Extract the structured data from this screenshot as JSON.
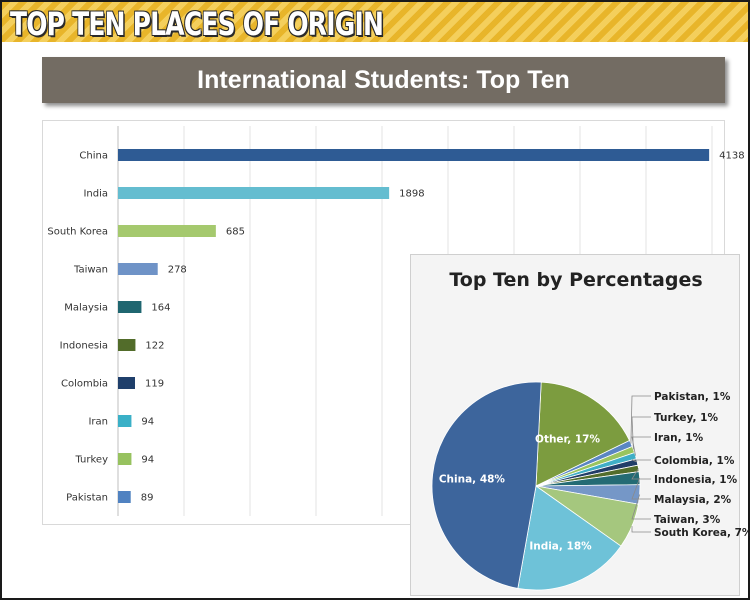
{
  "banner": {
    "title": "TOP TEN PLACES OF ORIGIN"
  },
  "header": {
    "title": "International Students: Top Ten"
  },
  "chart_data": [
    {
      "type": "bar",
      "orientation": "horizontal",
      "categories": [
        "China",
        "India",
        "South Korea",
        "Taiwan",
        "Malaysia",
        "Indonesia",
        "Colombia",
        "Iran",
        "Turkey",
        "Pakistan"
      ],
      "values": [
        4138,
        1898,
        685,
        278,
        164,
        122,
        119,
        94,
        94,
        89
      ],
      "data_labels": [
        "4138",
        "1898",
        "685",
        "278",
        "164",
        "122",
        "119",
        "94",
        "94",
        "89"
      ],
      "colors": [
        "#2e5b94",
        "#64bdd0",
        "#a5c96e",
        "#6f93c7",
        "#1f6670",
        "#526c2a",
        "#1f3f6b",
        "#3ab0c7",
        "#97c25f",
        "#5082c1"
      ],
      "xlim": [
        0,
        4200
      ],
      "grid": true,
      "xlabel": "",
      "ylabel": "",
      "title": ""
    },
    {
      "type": "pie",
      "title": "Top Ten by Percentages",
      "slices": [
        {
          "label": "China, 48%",
          "value": 48,
          "color": "#3d659c"
        },
        {
          "label": "India, 18%",
          "value": 18,
          "color": "#6ec2d8"
        },
        {
          "label": "South Korea, 7%",
          "value": 7,
          "color": "#a5c77e"
        },
        {
          "label": "Taiwan, 3%",
          "value": 3,
          "color": "#7597c7"
        },
        {
          "label": "Malaysia, 2%",
          "value": 2,
          "color": "#246b74"
        },
        {
          "label": "Indonesia, 1%",
          "value": 1,
          "color": "#536d2b"
        },
        {
          "label": "Colombia, 1%",
          "value": 1,
          "color": "#213d68"
        },
        {
          "label": "Iran, 1%",
          "value": 1,
          "color": "#3faec6"
        },
        {
          "label": "Turkey, 1%",
          "value": 1,
          "color": "#9ac45f"
        },
        {
          "label": "Pakistan, 1%",
          "value": 1,
          "color": "#5a86c3"
        },
        {
          "label": "Other, 17%",
          "value": 17,
          "color": "#7c9c3f"
        }
      ]
    }
  ]
}
